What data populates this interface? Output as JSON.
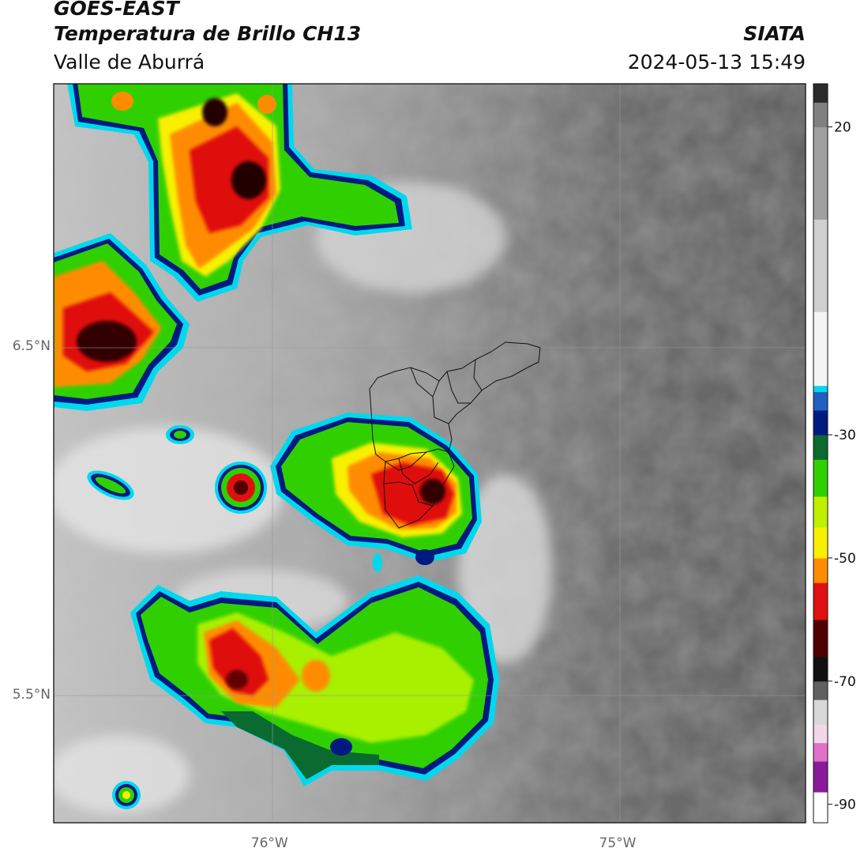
{
  "header": {
    "satellite": "GOES-EAST",
    "product": "Temperatura de Brillo CH13",
    "region": "Valle de Aburrá",
    "agency": "SIATA",
    "timestamp": "2024-05-13 15:49"
  },
  "map": {
    "lon_range": [
      -76.62,
      -74.46
    ],
    "lat_range": [
      5.13,
      7.25
    ],
    "lat_ticks": [
      {
        "value": 6.5,
        "label": "6.5°N"
      },
      {
        "value": 5.5,
        "label": "5.5°N"
      }
    ],
    "lon_ticks": [
      {
        "value": -76.0,
        "label": "76°W"
      },
      {
        "value": -75.0,
        "label": "75°W"
      }
    ],
    "gridlines": true
  },
  "colorbar": {
    "range": [
      -93,
      27
    ],
    "ticks": [
      {
        "value": 20,
        "label": "20"
      },
      {
        "value": -30,
        "label": "-30"
      },
      {
        "value": -50,
        "label": "-50"
      },
      {
        "value": -70,
        "label": "-70"
      },
      {
        "value": -90,
        "label": "-90"
      }
    ],
    "colors": {
      "purple": "#8a1a9a",
      "pink": "#e070c8",
      "black": "#111111",
      "red": "#e01010",
      "orange": "#ff8c00",
      "yellow": "#f8f000",
      "green": "#30d000",
      "darkgreen": "#0a6a30",
      "navy": "#001a80",
      "blue": "#2060c0",
      "cyan": "#00d8ee",
      "white": "#f4f4f4",
      "gray": "#808080"
    }
  }
}
